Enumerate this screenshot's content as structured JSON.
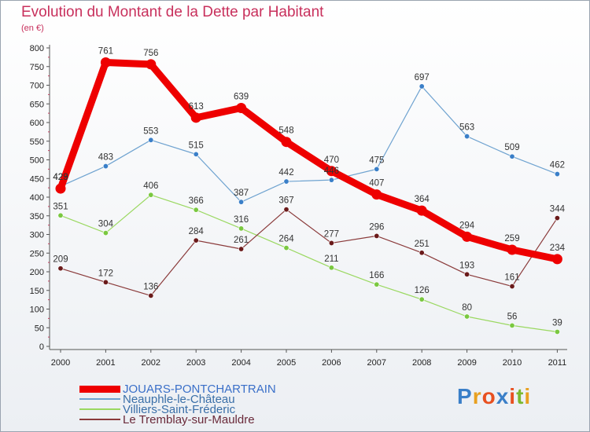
{
  "title": "Evolution du Montant de la Dette par Habitant",
  "unit": "(en €)",
  "brand": {
    "letters": [
      {
        "ch": "P",
        "color": "#3a7fc8"
      },
      {
        "ch": "r",
        "color": "#e8a020"
      },
      {
        "ch": "o",
        "color": "#e85020"
      },
      {
        "ch": "x",
        "color": "#3a7fc8"
      },
      {
        "ch": "i",
        "color": "#e85020"
      },
      {
        "ch": "t",
        "color": "#7ab830"
      },
      {
        "ch": "i",
        "color": "#e8a020"
      }
    ]
  },
  "chart_data": {
    "type": "line",
    "title": "Evolution du Montant de la Dette par Habitant",
    "ylabel": "(en €)",
    "xlabel": "",
    "x": [
      "2000",
      "2001",
      "2002",
      "2003",
      "2004",
      "2005",
      "2006",
      "2007",
      "2008",
      "2009",
      "2010",
      "2011"
    ],
    "ylim": [
      0,
      800
    ],
    "yticks": [
      0,
      50,
      100,
      150,
      200,
      250,
      300,
      350,
      400,
      450,
      500,
      550,
      600,
      650,
      700,
      750,
      800
    ],
    "grid": false,
    "legend": "bottom-left",
    "series": [
      {
        "name": "JOUARS-PONTCHARTRAIN",
        "color": "#ee0000",
        "marker": "#ee0000",
        "emphasis": true,
        "values": [
          423,
          761,
          756,
          613,
          639,
          548,
          470,
          407,
          364,
          294,
          259,
          234
        ]
      },
      {
        "name": "Neauphle-le-Château",
        "color": "#6fa3d0",
        "marker": "#3a7fc8",
        "emphasis": false,
        "values": [
          429,
          483,
          553,
          515,
          387,
          442,
          446,
          475,
          697,
          563,
          509,
          462
        ]
      },
      {
        "name": "Villiers-Saint-Fréderic",
        "color": "#9ad860",
        "marker": "#7ac840",
        "emphasis": false,
        "values": [
          351,
          304,
          406,
          366,
          316,
          264,
          211,
          166,
          126,
          80,
          56,
          39
        ]
      },
      {
        "name": "Le Tremblay-sur-Mauldre",
        "color": "#8a3a3a",
        "marker": "#6a1a1a",
        "emphasis": false,
        "values": [
          209,
          172,
          136,
          284,
          261,
          367,
          277,
          296,
          251,
          193,
          161,
          344
        ]
      }
    ]
  }
}
